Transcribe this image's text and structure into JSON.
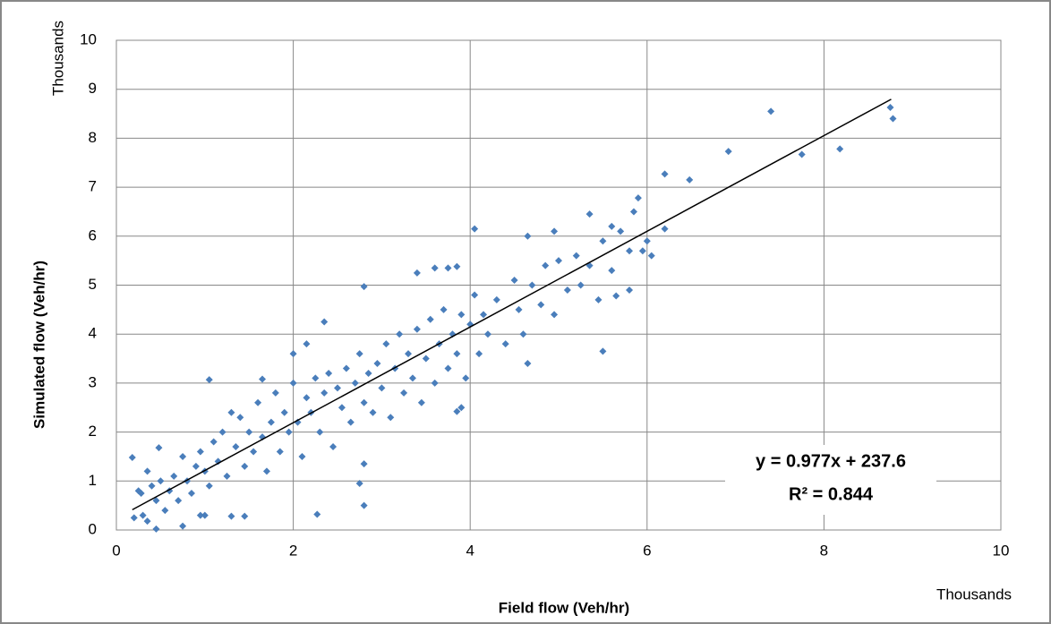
{
  "chart_data": {
    "type": "scatter",
    "x_label": "Field flow (Veh/hr)",
    "y_label": "Simulated flow (Veh/hr)",
    "x_unit_label": "Thousands",
    "y_unit_label": "Thousands",
    "color": "#4a7ebb",
    "grid": true,
    "xlim": [
      0,
      10
    ],
    "xticks": [
      0,
      2,
      4,
      6,
      8,
      10
    ],
    "ylim": [
      0,
      10
    ],
    "yticks": [
      0,
      1,
      2,
      3,
      4,
      5,
      6,
      7,
      8,
      9,
      10
    ],
    "x": [
      0.18,
      0.2,
      0.28,
      0.3,
      0.35,
      0.45,
      0.48,
      0.75,
      1.05,
      1.0,
      0.95,
      1.3,
      1.45,
      2.27,
      2.8,
      2.8,
      2.35,
      1.65,
      2.0,
      2.15,
      3.4,
      3.6,
      3.75,
      3.85,
      4.05,
      4.65,
      4.95,
      5.35,
      5.6,
      5.85,
      5.9,
      6.2,
      6.2,
      6.05,
      6.48,
      6.92,
      7.4,
      7.75,
      8.18,
      8.75,
      8.78,
      5.5,
      5.65,
      5.8,
      4.65,
      3.85,
      3.9,
      2.8,
      2.75,
      0.25,
      0.35,
      0.4,
      0.45,
      0.5,
      0.55,
      0.6,
      0.65,
      0.7,
      0.75,
      0.8,
      0.85,
      0.9,
      0.95,
      1.0,
      1.05,
      1.1,
      1.15,
      1.2,
      1.25,
      1.3,
      1.35,
      1.4,
      1.45,
      1.5,
      1.55,
      1.6,
      1.65,
      1.7,
      1.75,
      1.8,
      1.85,
      1.9,
      1.95,
      2.0,
      2.05,
      2.1,
      2.15,
      2.2,
      2.25,
      2.3,
      2.35,
      2.4,
      2.45,
      2.5,
      2.55,
      2.6,
      2.65,
      2.7,
      2.75,
      2.8,
      2.85,
      2.9,
      2.95,
      3.0,
      3.05,
      3.1,
      3.15,
      3.2,
      3.25,
      3.3,
      3.35,
      3.4,
      3.45,
      3.5,
      3.55,
      3.6,
      3.65,
      3.7,
      3.75,
      3.8,
      3.85,
      3.9,
      3.95,
      4.0,
      4.05,
      4.1,
      4.15,
      4.2,
      4.3,
      4.4,
      4.5,
      4.55,
      4.6,
      4.7,
      4.8,
      4.85,
      4.95,
      5.0,
      5.1,
      5.2,
      5.25,
      5.35,
      5.45,
      5.5,
      5.6,
      5.7,
      5.8,
      5.95,
      6.0
    ],
    "values": [
      1.48,
      0.25,
      0.75,
      0.3,
      0.18,
      0.02,
      1.68,
      0.08,
      3.07,
      0.3,
      0.3,
      0.28,
      0.28,
      0.32,
      0.5,
      4.97,
      4.25,
      3.08,
      3.6,
      3.8,
      5.25,
      5.35,
      5.35,
      5.38,
      6.15,
      6.0,
      6.1,
      6.45,
      6.2,
      6.5,
      6.78,
      7.27,
      6.15,
      5.6,
      7.15,
      7.73,
      8.55,
      7.67,
      7.78,
      8.63,
      8.4,
      3.65,
      4.78,
      4.9,
      3.4,
      2.42,
      2.5,
      1.35,
      0.95,
      0.8,
      1.2,
      0.9,
      0.6,
      1.0,
      0.4,
      0.8,
      1.1,
      0.6,
      1.5,
      1.0,
      0.75,
      1.3,
      1.6,
      1.2,
      0.9,
      1.8,
      1.4,
      2.0,
      1.1,
      2.4,
      1.7,
      2.3,
      1.3,
      2.0,
      1.6,
      2.6,
      1.9,
      1.2,
      2.2,
      2.8,
      1.6,
      2.4,
      2.0,
      3.0,
      2.2,
      1.5,
      2.7,
      2.4,
      3.1,
      2.0,
      2.8,
      3.2,
      1.7,
      2.9,
      2.5,
      3.3,
      2.2,
      3.0,
      3.6,
      2.6,
      3.2,
      2.4,
      3.4,
      2.9,
      3.8,
      2.3,
      3.3,
      4.0,
      2.8,
      3.6,
      3.1,
      4.1,
      2.6,
      3.5,
      4.3,
      3.0,
      3.8,
      4.5,
      3.3,
      4.0,
      3.6,
      4.4,
      3.1,
      4.2,
      4.8,
      3.6,
      4.4,
      4.0,
      4.7,
      3.8,
      5.1,
      4.5,
      4.0,
      5.0,
      4.6,
      5.4,
      4.4,
      5.5,
      4.9,
      5.6,
      5.0,
      5.4,
      4.7,
      5.9,
      5.3,
      6.1,
      5.7,
      5.7,
      5.9
    ],
    "trendline": {
      "equation": "y = 0.977x + 237.6",
      "r2": "R² = 0.844",
      "color": "#000000",
      "x": [
        0.18,
        8.76
      ],
      "values": [
        0.414,
        8.796
      ]
    }
  }
}
